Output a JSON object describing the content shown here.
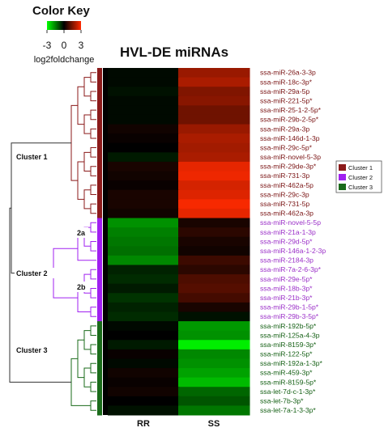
{
  "chart_data": {
    "type": "heatmap",
    "title": "HVL-DE miRNAs",
    "color_key": {
      "title": "Color Key",
      "label": "log2foldchange",
      "ticks": [
        "-3",
        "0",
        "3"
      ],
      "range": [
        -3,
        3
      ],
      "low_color": "#00ff00",
      "mid_color": "#000000",
      "high_color": "#ff2a00"
    },
    "columns": [
      "RR",
      "SS"
    ],
    "rows": [
      {
        "label": "ssa-miR-26a-3-3p",
        "cluster": 1,
        "values": [
          -0.1,
          1.8
        ]
      },
      {
        "label": "ssa-miR-18c-3p*",
        "cluster": 1,
        "values": [
          -0.1,
          2.0
        ]
      },
      {
        "label": "ssa-miR-29a-5p",
        "cluster": 1,
        "values": [
          -0.2,
          1.5
        ]
      },
      {
        "label": "ssa-miR-221-5p*",
        "cluster": 1,
        "values": [
          -0.1,
          1.6
        ]
      },
      {
        "label": "ssa-miR-25-1-2-5p*",
        "cluster": 1,
        "values": [
          -0.1,
          1.3
        ]
      },
      {
        "label": "ssa-miR-29b-2-5p*",
        "cluster": 1,
        "values": [
          -0.1,
          1.3
        ]
      },
      {
        "label": "ssa-miR-29a-3p",
        "cluster": 1,
        "values": [
          0.2,
          1.8
        ]
      },
      {
        "label": "ssa-miR-146d-1-3p",
        "cluster": 1,
        "values": [
          0.1,
          2.0
        ]
      },
      {
        "label": "ssa-miR-29c-5p*",
        "cluster": 1,
        "values": [
          0.0,
          1.9
        ]
      },
      {
        "label": "ssa-miR-novel-5-3p",
        "cluster": 1,
        "values": [
          -0.3,
          2.0
        ]
      },
      {
        "label": "ssa-miR-29de-3p*",
        "cluster": 1,
        "values": [
          0.3,
          2.7
        ]
      },
      {
        "label": "ssa-miR-731-3p",
        "cluster": 1,
        "values": [
          0.2,
          2.8
        ]
      },
      {
        "label": "ssa-miR-462a-5p",
        "cluster": 1,
        "values": [
          0.1,
          2.5
        ]
      },
      {
        "label": "ssa-miR-29c-3p",
        "cluster": 1,
        "values": [
          0.3,
          2.6
        ]
      },
      {
        "label": "ssa-miR-731-5p",
        "cluster": 1,
        "values": [
          0.3,
          2.9
        ]
      },
      {
        "label": "ssa-miR-462a-3p",
        "cluster": 1,
        "values": [
          0.2,
          2.7
        ]
      },
      {
        "label": "ssa-miR-novel-5-5p",
        "cluster": 2,
        "values": [
          -1.7,
          0.3
        ]
      },
      {
        "label": "ssa-miR-21a-1-3p",
        "cluster": 2,
        "values": [
          -1.5,
          0.5
        ]
      },
      {
        "label": "ssa-miR-29d-5p*",
        "cluster": 2,
        "values": [
          -1.4,
          0.3
        ]
      },
      {
        "label": "ssa-miR-146a-1-2-3p",
        "cluster": 2,
        "values": [
          -1.3,
          0.2
        ]
      },
      {
        "label": "ssa-miR-2184-3p",
        "cluster": 2,
        "values": [
          -1.6,
          0.7
        ]
      },
      {
        "label": "ssa-miR-7a-2-6-3p*",
        "cluster": 2,
        "values": [
          -0.4,
          0.5
        ]
      },
      {
        "label": "ssa-miR-29e-5p*",
        "cluster": 2,
        "values": [
          -0.5,
          0.9
        ]
      },
      {
        "label": "ssa-miR-18b-3p*",
        "cluster": 2,
        "values": [
          -0.3,
          1.0
        ]
      },
      {
        "label": "ssa-miR-21b-3p*",
        "cluster": 2,
        "values": [
          -0.6,
          0.8
        ]
      },
      {
        "label": "ssa-miR-29b-1-5p*",
        "cluster": 2,
        "values": [
          -0.4,
          0.3
        ]
      },
      {
        "label": "ssa-miR-29b-3-5p*",
        "cluster": 2,
        "values": [
          -0.5,
          -0.2
        ]
      },
      {
        "label": "ssa-miR-192b-5p*",
        "cluster": 3,
        "values": [
          -0.1,
          -1.8
        ]
      },
      {
        "label": "ssa-miR-125a-4-3p",
        "cluster": 3,
        "values": [
          0.0,
          -1.7
        ]
      },
      {
        "label": "ssa-miR-8159-3p*",
        "cluster": 3,
        "values": [
          -0.3,
          -2.8
        ]
      },
      {
        "label": "ssa-miR-122-5p*",
        "cluster": 3,
        "values": [
          0.1,
          -1.6
        ]
      },
      {
        "label": "ssa-miR-192a-1-3p*",
        "cluster": 3,
        "values": [
          -0.1,
          -1.7
        ]
      },
      {
        "label": "ssa-miR-459-3p*",
        "cluster": 3,
        "values": [
          0.2,
          -1.9
        ]
      },
      {
        "label": "ssa-miR-8159-5p*",
        "cluster": 3,
        "values": [
          0.1,
          -2.2
        ]
      },
      {
        "label": "ssa-let-7d-c-1-3p*",
        "cluster": 3,
        "values": [
          0.2,
          -1.2
        ]
      },
      {
        "label": "ssa-let-7b-3p*",
        "cluster": 3,
        "values": [
          0.0,
          -1.0
        ]
      },
      {
        "label": "ssa-let-7a-1-3-3p*",
        "cluster": 3,
        "values": [
          -0.2,
          -1.4
        ]
      }
    ],
    "clusters": [
      {
        "id": 1,
        "name": "Cluster 1",
        "color": "#8b1a1a",
        "label_color": "#7a1414"
      },
      {
        "id": 2,
        "name": "Cluster 2",
        "color": "#a020f0",
        "label_color": "#9b30c8"
      },
      {
        "id": 3,
        "name": "Cluster 3",
        "color": "#1a6b1a",
        "label_color": "#156015"
      }
    ],
    "subclusters": [
      "2a",
      "2b"
    ],
    "legend": {
      "placement": "right"
    }
  }
}
